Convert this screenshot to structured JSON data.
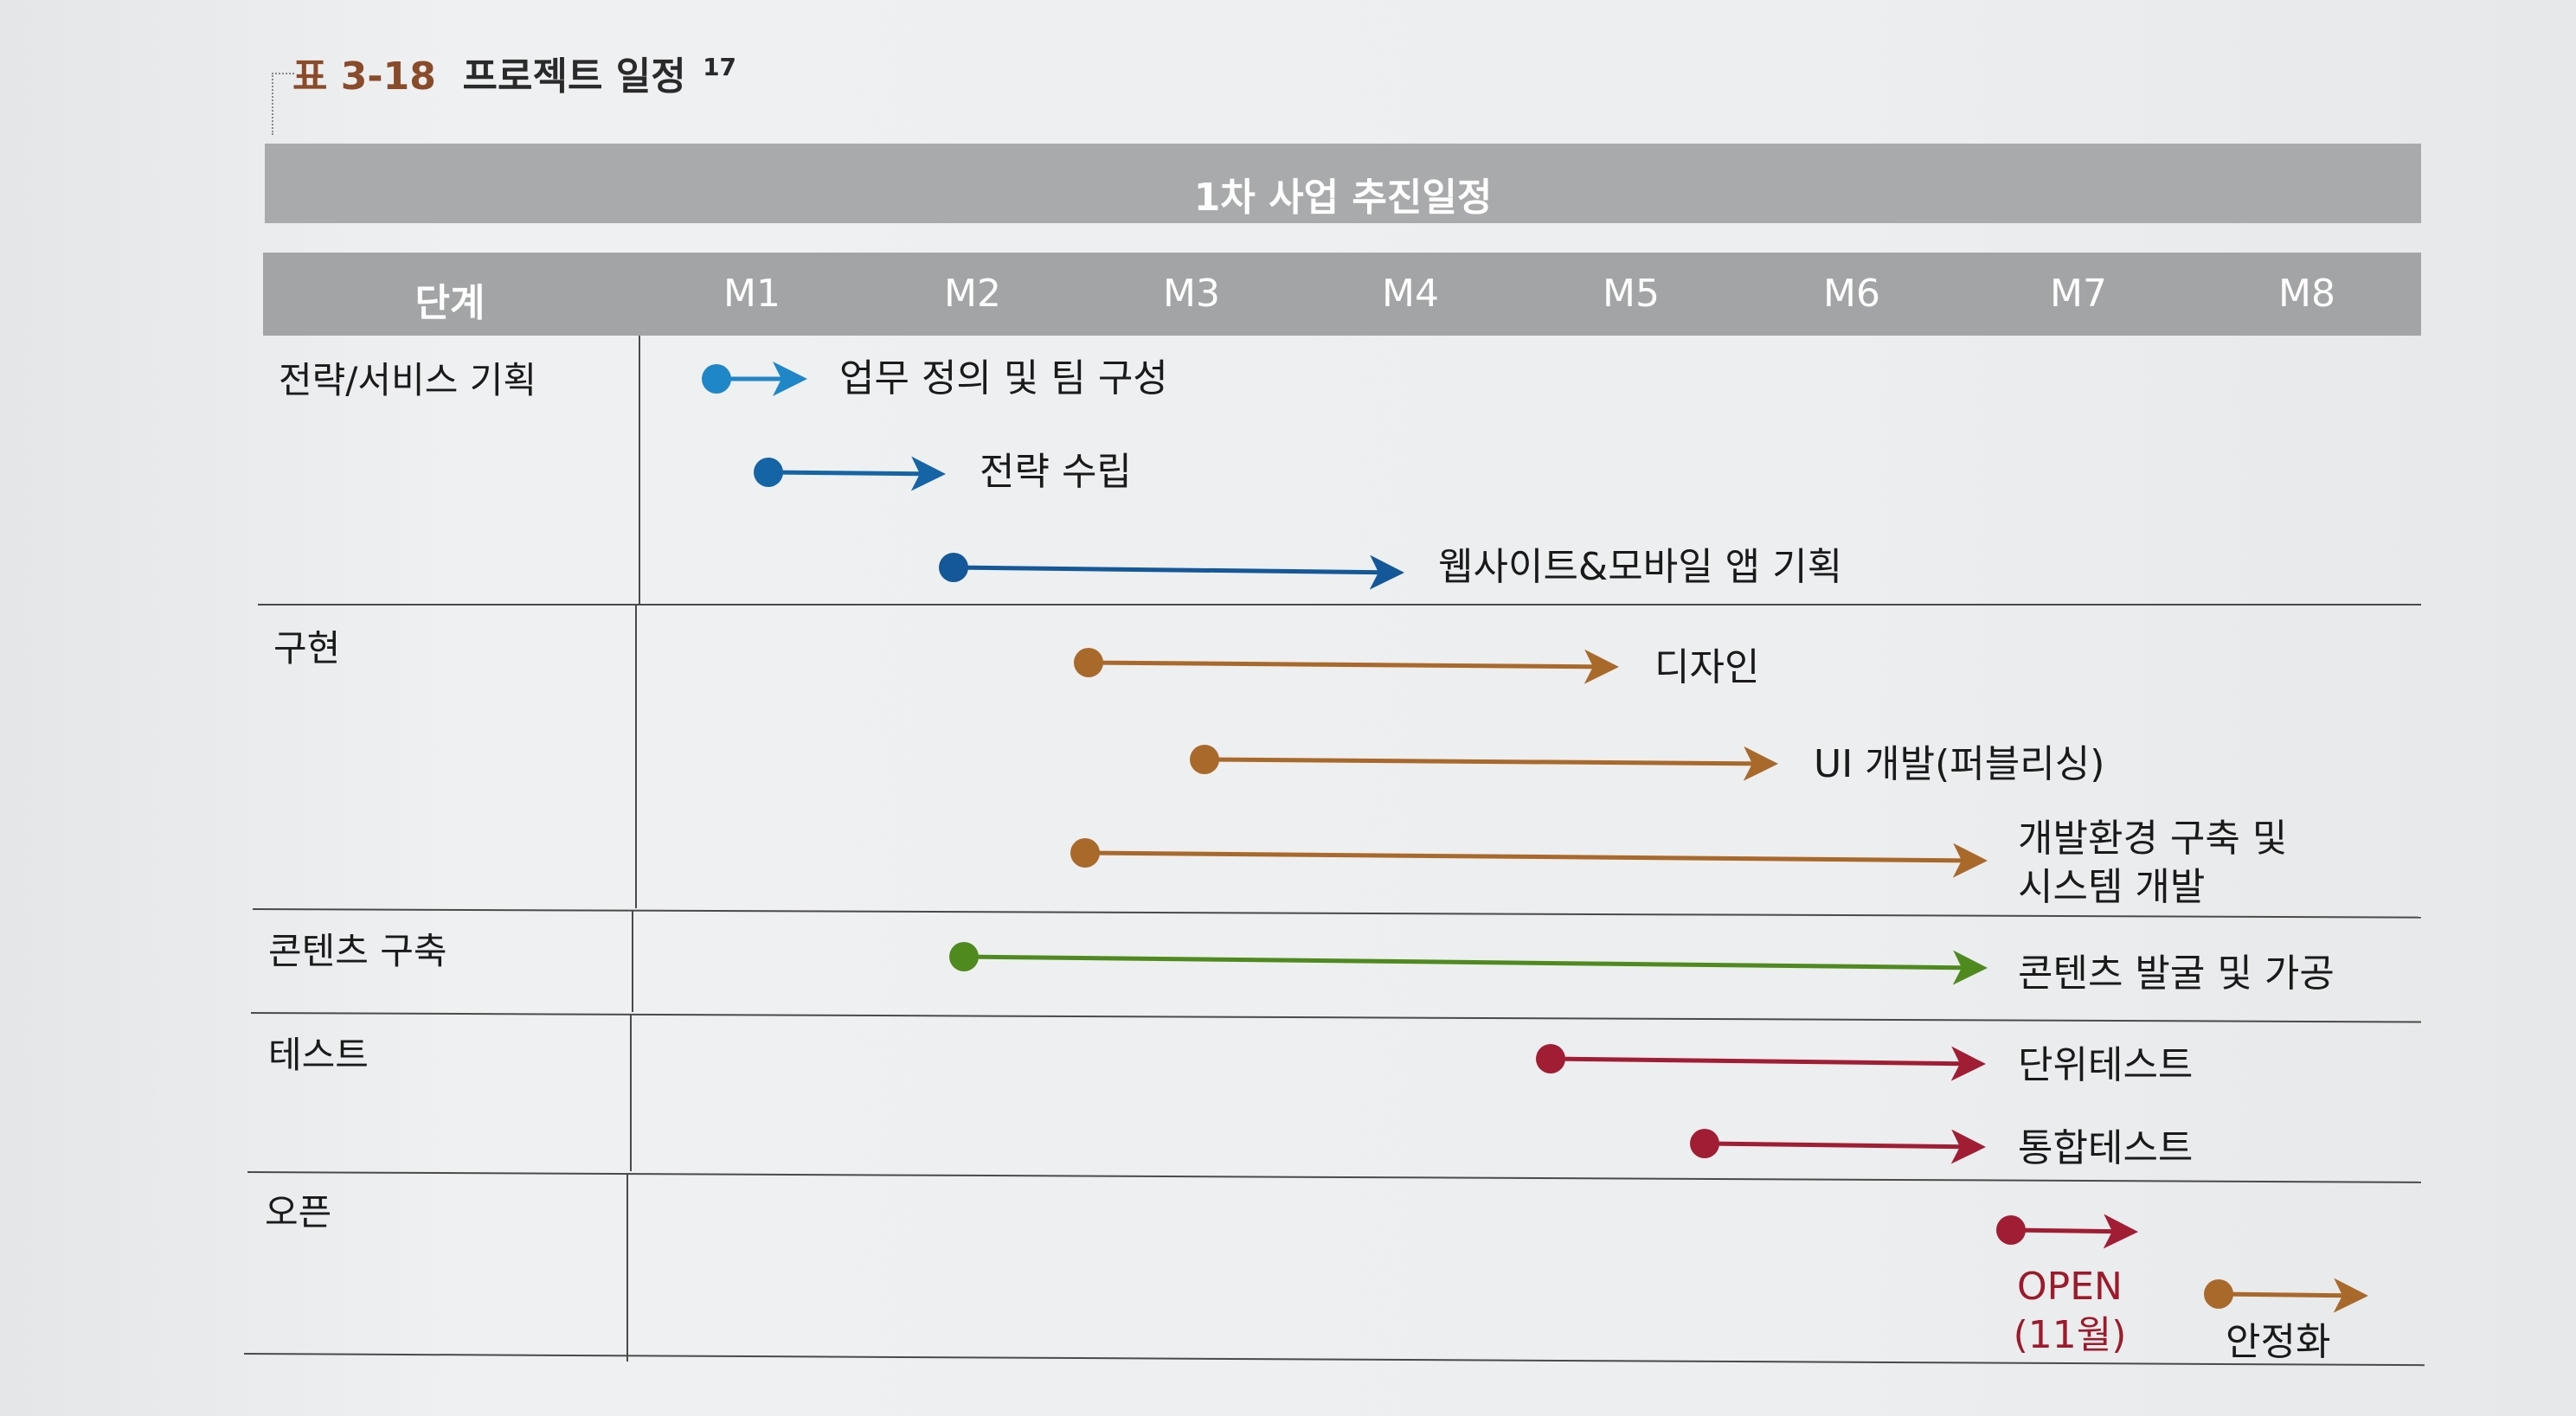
{
  "caption": {
    "label": "표 3-18",
    "title": "프로젝트 일정",
    "footnote": "17"
  },
  "header": {
    "title": "1차 사업 추진일정",
    "stage_label": "단계",
    "months": [
      "M1",
      "M2",
      "M3",
      "M4",
      "M5",
      "M6",
      "M7",
      "M8"
    ]
  },
  "phases": [
    {
      "name": "전략/서비스 기획"
    },
    {
      "name": "구현"
    },
    {
      "name": "콘텐츠 구축"
    },
    {
      "name": "테스트"
    },
    {
      "name": "오픈"
    }
  ],
  "tasks": [
    {
      "label": "업무 정의 및 팀 구성",
      "color": "#1f86c8"
    },
    {
      "label": "전략 수립",
      "color": "#1565a6"
    },
    {
      "label": "웹사이트&모바일 앱 기획",
      "color": "#14589a"
    },
    {
      "label": "디자인",
      "color": "#a8692a"
    },
    {
      "label": "UI 개발(퍼블리싱)",
      "color": "#a8692a"
    },
    {
      "label_line1": "개발환경 구축 및",
      "label_line2": "시스템 개발",
      "color": "#a8692a"
    },
    {
      "label": "콘텐츠 발굴 및 가공",
      "color": "#4f8a1f"
    },
    {
      "label": "단위테스트",
      "color": "#a01d33"
    },
    {
      "label": "통합테스트",
      "color": "#a01d33"
    },
    {
      "label_line1": "OPEN",
      "label_line2": "(11월)",
      "color": "#a01d33"
    },
    {
      "label": "안정화",
      "color": "#a8692a"
    }
  ],
  "colors": {
    "header_bar": "#a9aaac",
    "header_row": "#a3a4a6",
    "strategy_blue": "#1565a6",
    "implementation_brown": "#a8692a",
    "content_green": "#4f8a1f",
    "test_red": "#a01d33"
  }
}
